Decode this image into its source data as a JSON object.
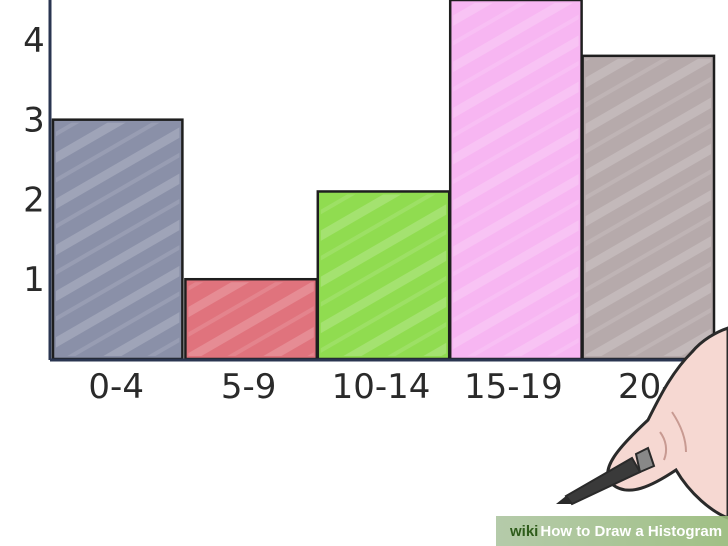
{
  "chart_data": {
    "type": "bar",
    "title": "",
    "xlabel": "",
    "ylabel": "",
    "categories": [
      "0-4",
      "5-9",
      "10-14",
      "15-19",
      "20-24"
    ],
    "category_labels_visible": [
      "0-4",
      "5-9",
      "10-14",
      "15-19",
      "20-"
    ],
    "values": [
      3,
      1,
      2.1,
      4.5,
      3.8
    ],
    "colors": [
      "#8a90a8",
      "#e0737d",
      "#90dc50",
      "#f7b6f2",
      "#b6aaab"
    ],
    "yticks": [
      1,
      2,
      3,
      4
    ],
    "ylim": [
      0,
      4.5
    ],
    "grid": false
  },
  "watermark": {
    "brand": "wiki",
    "text": "How to Draw a Histogram"
  }
}
